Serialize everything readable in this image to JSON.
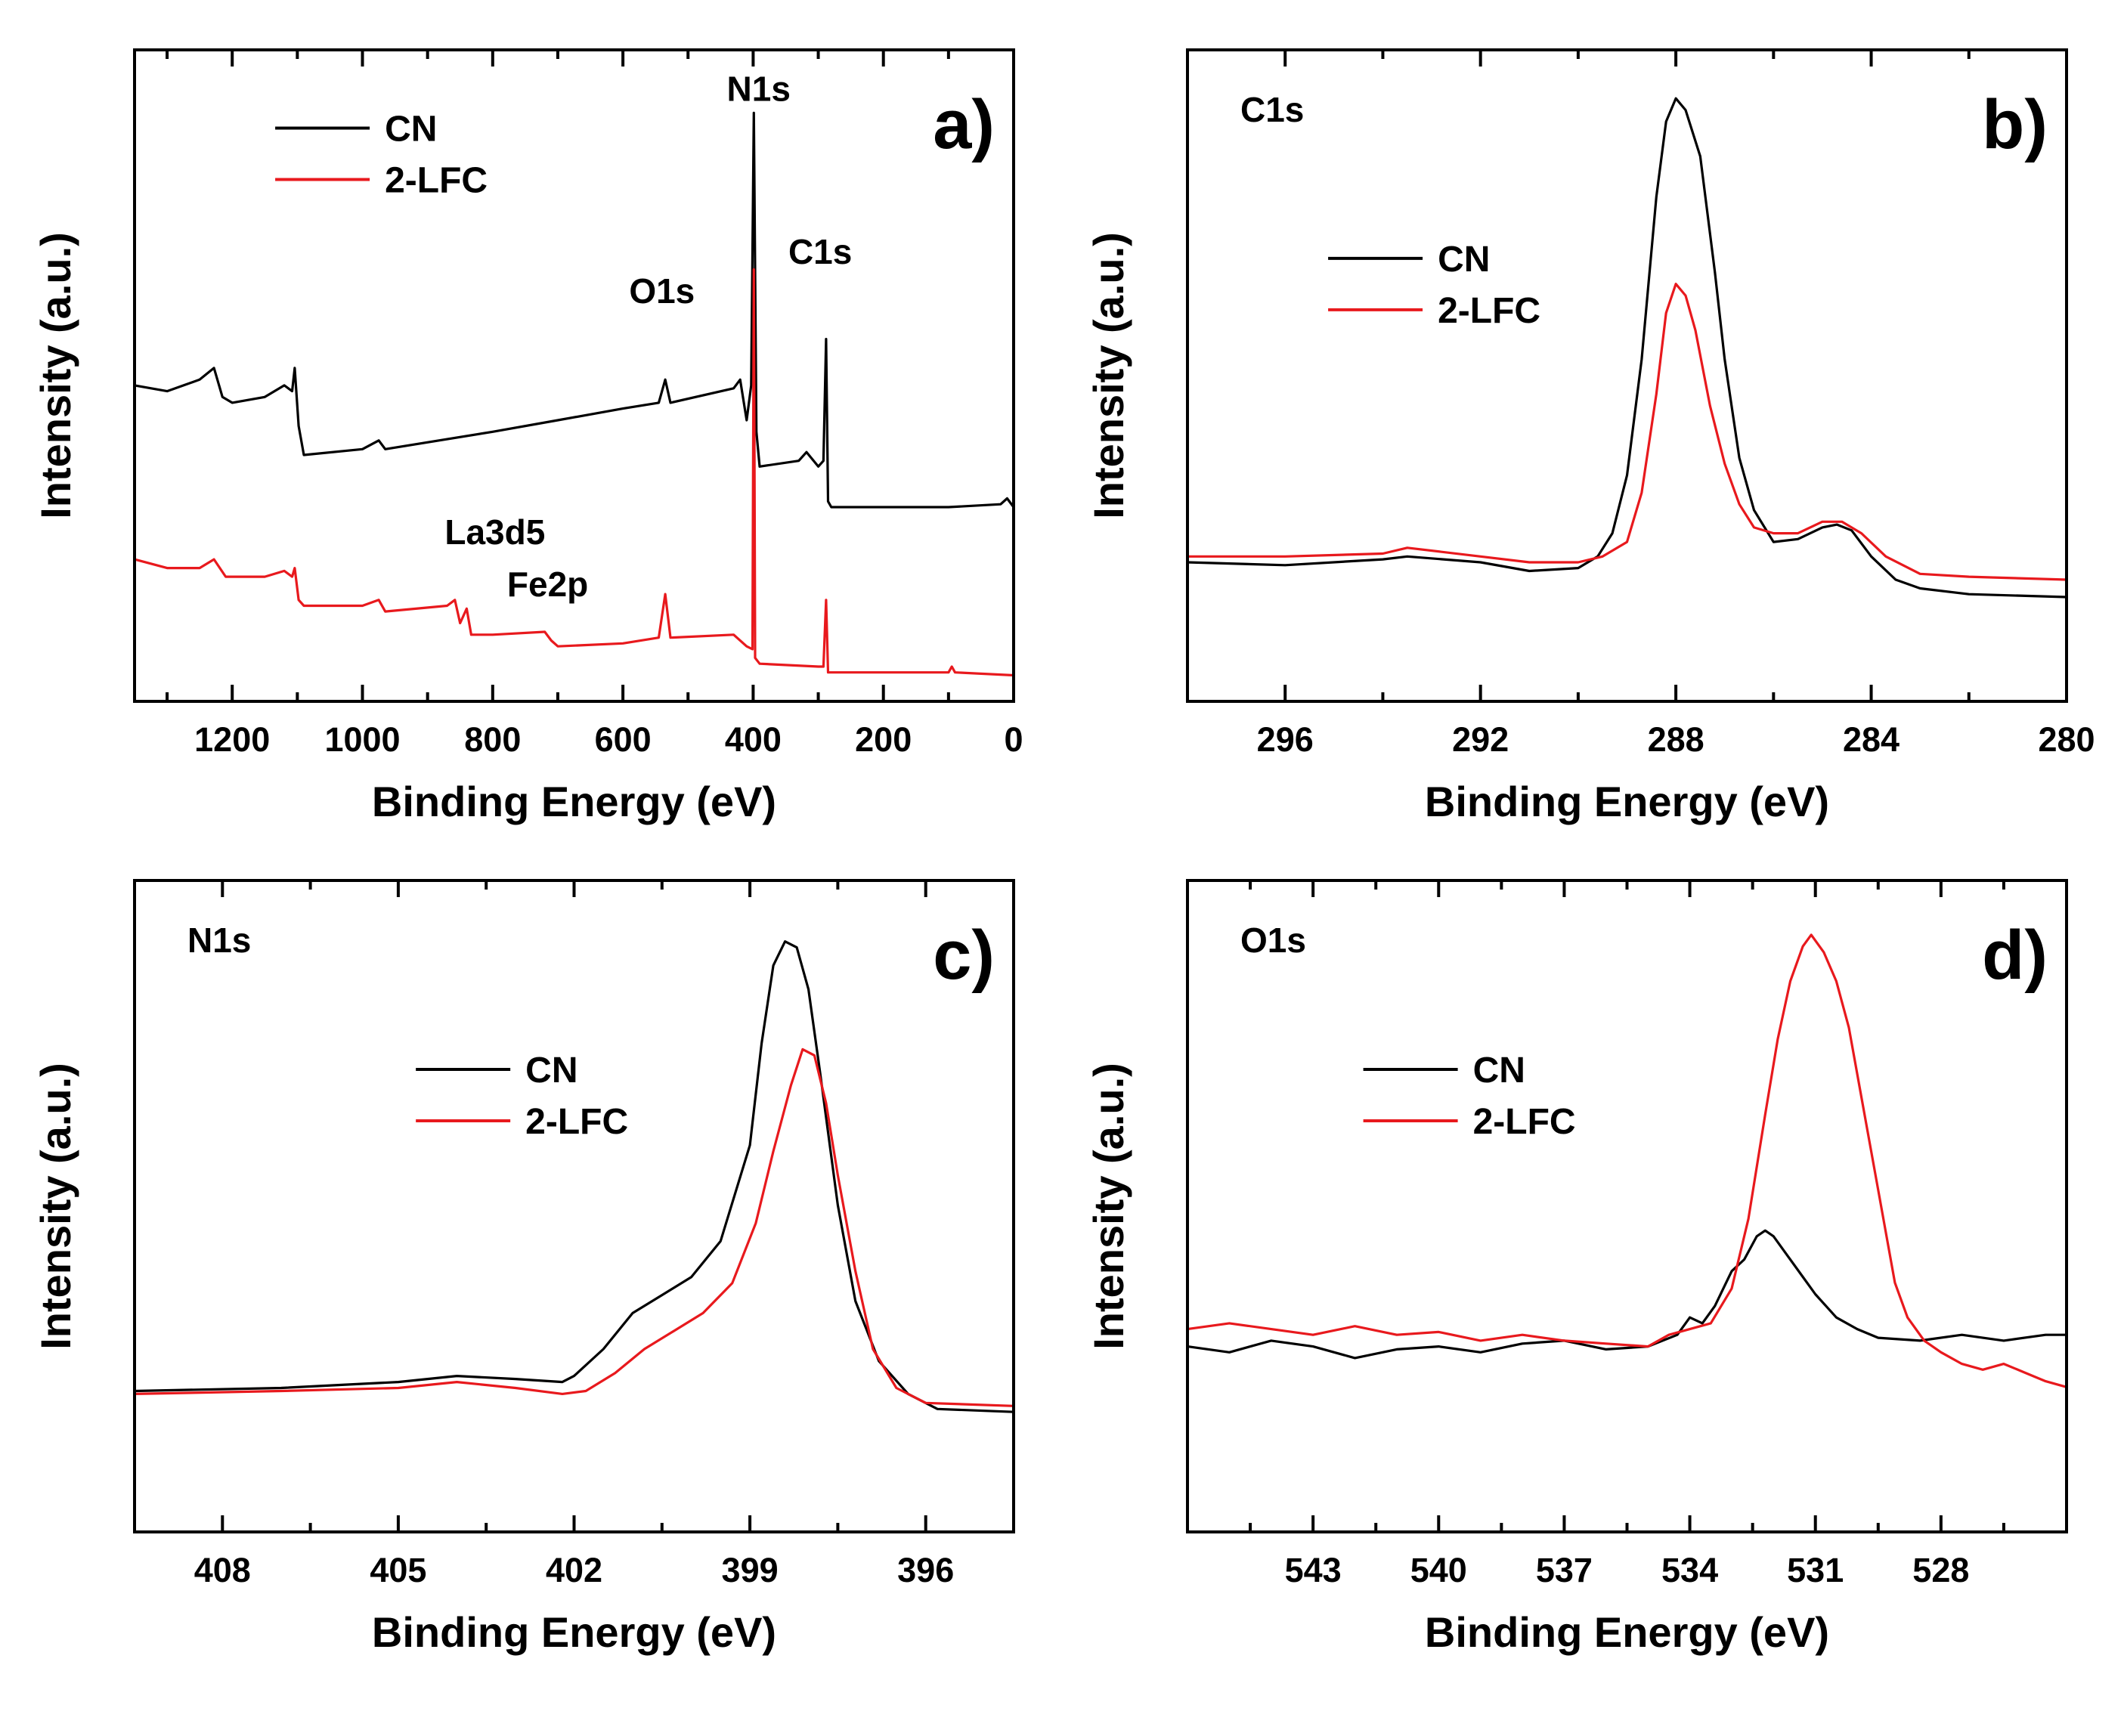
{
  "colors": {
    "CN": "#000000",
    "2-LFC": "#e8191d"
  },
  "chart_data": [
    {
      "id": "a",
      "type": "line",
      "panel_label": "a)",
      "xlabel": "Binding Energy (eV)",
      "ylabel": "Intensity (a.u.)",
      "xlim": [
        1350,
        0
      ],
      "ylim": [
        0,
        100
      ],
      "xticks": [
        1200,
        1000,
        800,
        600,
        400,
        200,
        0
      ],
      "legend": [
        "CN",
        "2-LFC"
      ],
      "annotations": [
        "N1s",
        "C1s",
        "O1s",
        "La3d5",
        "Fe2p"
      ],
      "series": [
        {
          "name": "CN",
          "points": [
            [
              1350,
              50
            ],
            [
              1300,
              49
            ],
            [
              1250,
              51
            ],
            [
              1228,
              53
            ],
            [
              1215,
              48
            ],
            [
              1200,
              47
            ],
            [
              1150,
              48
            ],
            [
              1120,
              50
            ],
            [
              1108,
              49
            ],
            [
              1104,
              53
            ],
            [
              1098,
              43
            ],
            [
              1090,
              38
            ],
            [
              1000,
              39
            ],
            [
              975,
              40.5
            ],
            [
              965,
              39
            ],
            [
              800,
              42
            ],
            [
              700,
              44
            ],
            [
              600,
              46
            ],
            [
              545,
              47
            ],
            [
              535,
              51
            ],
            [
              527,
              47
            ],
            [
              430,
              49.5
            ],
            [
              420,
              51
            ],
            [
              410,
              44
            ],
            [
              403,
              50
            ],
            [
              399,
              97
            ],
            [
              395,
              42
            ],
            [
              390,
              36
            ],
            [
              330,
              37
            ],
            [
              318,
              38.5
            ],
            [
              300,
              36
            ],
            [
              292,
              37
            ],
            [
              288,
              58
            ],
            [
              285,
              30
            ],
            [
              280,
              29
            ],
            [
              100,
              29
            ],
            [
              20,
              29.5
            ],
            [
              10,
              30.5
            ],
            [
              0,
              29
            ]
          ]
        },
        {
          "name": "2-LFC",
          "points": [
            [
              1350,
              20
            ],
            [
              1300,
              18.5
            ],
            [
              1250,
              18.5
            ],
            [
              1228,
              20
            ],
            [
              1210,
              17
            ],
            [
              1150,
              17
            ],
            [
              1120,
              18
            ],
            [
              1108,
              17
            ],
            [
              1104,
              18.5
            ],
            [
              1098,
              13
            ],
            [
              1090,
              12
            ],
            [
              1000,
              12
            ],
            [
              975,
              13
            ],
            [
              965,
              11
            ],
            [
              870,
              12
            ],
            [
              858,
              13
            ],
            [
              850,
              9
            ],
            [
              840,
              11.5
            ],
            [
              833,
              7
            ],
            [
              800,
              7
            ],
            [
              720,
              7.5
            ],
            [
              710,
              6
            ],
            [
              700,
              5
            ],
            [
              600,
              5.5
            ],
            [
              545,
              6.5
            ],
            [
              535,
              14
            ],
            [
              527,
              6.5
            ],
            [
              430,
              7
            ],
            [
              410,
              5
            ],
            [
              401,
              4.5
            ],
            [
              399,
              70
            ],
            [
              397,
              3
            ],
            [
              390,
              2
            ],
            [
              300,
              1.5
            ],
            [
              292,
              1.5
            ],
            [
              288,
              13
            ],
            [
              285,
              0.5
            ],
            [
              100,
              0.5
            ],
            [
              95,
              1.5
            ],
            [
              90,
              0.5
            ],
            [
              0,
              0
            ]
          ]
        }
      ]
    },
    {
      "id": "b",
      "type": "line",
      "panel_label": "b)",
      "corner_label": "C1s",
      "xlabel": "Binding Energy (eV)",
      "ylabel": "Intensity (a.u.)",
      "xlim": [
        298,
        280
      ],
      "ylim": [
        0,
        100
      ],
      "xticks": [
        296,
        292,
        288,
        284,
        280
      ],
      "legend": [
        "CN",
        "2-LFC"
      ],
      "series": [
        {
          "name": "CN",
          "points": [
            [
              298,
              15
            ],
            [
              296,
              14.5
            ],
            [
              294,
              15.5
            ],
            [
              293.5,
              16
            ],
            [
              292,
              15
            ],
            [
              291,
              13.5
            ],
            [
              290,
              14
            ],
            [
              289.6,
              16
            ],
            [
              289.3,
              20
            ],
            [
              289,
              30
            ],
            [
              288.7,
              50
            ],
            [
              288.4,
              78
            ],
            [
              288.2,
              91
            ],
            [
              288,
              95
            ],
            [
              287.8,
              93
            ],
            [
              287.5,
              85
            ],
            [
              287.2,
              65
            ],
            [
              287,
              50
            ],
            [
              286.7,
              33
            ],
            [
              286.4,
              24
            ],
            [
              286,
              18.5
            ],
            [
              285.5,
              19
            ],
            [
              285,
              21
            ],
            [
              284.7,
              21.5
            ],
            [
              284.4,
              20.5
            ],
            [
              284,
              16
            ],
            [
              283.5,
              12
            ],
            [
              283,
              10.5
            ],
            [
              282,
              9.5
            ],
            [
              280,
              9
            ]
          ]
        },
        {
          "name": "2-LFC",
          "points": [
            [
              298,
              16
            ],
            [
              296,
              16
            ],
            [
              294,
              16.5
            ],
            [
              293.5,
              17.5
            ],
            [
              292,
              16
            ],
            [
              291,
              15
            ],
            [
              290,
              15
            ],
            [
              289.5,
              16
            ],
            [
              289,
              18.5
            ],
            [
              288.7,
              27
            ],
            [
              288.4,
              44
            ],
            [
              288.2,
              58
            ],
            [
              288,
              63
            ],
            [
              287.8,
              61
            ],
            [
              287.6,
              55
            ],
            [
              287.3,
              42
            ],
            [
              287,
              32
            ],
            [
              286.7,
              25
            ],
            [
              286.4,
              21
            ],
            [
              286,
              20
            ],
            [
              285.5,
              20
            ],
            [
              285,
              22
            ],
            [
              284.6,
              22
            ],
            [
              284.2,
              20
            ],
            [
              283.7,
              16
            ],
            [
              283,
              13
            ],
            [
              282,
              12.5
            ],
            [
              280,
              12
            ]
          ]
        }
      ]
    },
    {
      "id": "c",
      "type": "line",
      "panel_label": "c)",
      "corner_label": "N1s",
      "xlabel": "Binding Energy (eV)",
      "ylabel": "Intensity (a.u.)",
      "xlim": [
        409.5,
        394.5
      ],
      "ylim": [
        0,
        100
      ],
      "xticks": [
        408,
        405,
        402,
        399,
        396
      ],
      "legend": [
        "CN",
        "2-LFC"
      ],
      "series": [
        {
          "name": "CN",
          "points": [
            [
              409.5,
              17
            ],
            [
              407,
              17.5
            ],
            [
              405,
              18.5
            ],
            [
              404,
              19.5
            ],
            [
              403,
              19
            ],
            [
              402.2,
              18.5
            ],
            [
              402,
              19.5
            ],
            [
              401.5,
              24
            ],
            [
              401,
              30
            ],
            [
              400.5,
              33
            ],
            [
              400,
              36
            ],
            [
              399.5,
              42
            ],
            [
              399,
              58
            ],
            [
              398.8,
              75
            ],
            [
              398.6,
              88
            ],
            [
              398.4,
              92
            ],
            [
              398.2,
              91
            ],
            [
              398,
              84
            ],
            [
              397.8,
              70
            ],
            [
              397.5,
              48
            ],
            [
              397.2,
              32
            ],
            [
              396.8,
              22
            ],
            [
              396.3,
              16.5
            ],
            [
              395.8,
              14
            ],
            [
              394.5,
              13.5
            ]
          ]
        },
        {
          "name": "2-LFC",
          "points": [
            [
              409.5,
              16.5
            ],
            [
              407,
              17
            ],
            [
              405,
              17.5
            ],
            [
              404,
              18.5
            ],
            [
              403,
              17.5
            ],
            [
              402.2,
              16.5
            ],
            [
              401.8,
              17
            ],
            [
              401.3,
              20
            ],
            [
              400.8,
              24
            ],
            [
              400.3,
              27
            ],
            [
              399.8,
              30
            ],
            [
              399.3,
              35
            ],
            [
              398.9,
              45
            ],
            [
              398.6,
              57
            ],
            [
              398.3,
              68
            ],
            [
              398.1,
              74
            ],
            [
              397.9,
              73
            ],
            [
              397.7,
              65
            ],
            [
              397.5,
              53
            ],
            [
              397.2,
              37
            ],
            [
              396.9,
              24
            ],
            [
              396.5,
              17.5
            ],
            [
              396,
              15
            ],
            [
              394.5,
              14.5
            ]
          ]
        }
      ]
    },
    {
      "id": "d",
      "type": "line",
      "panel_label": "d)",
      "corner_label": "O1s",
      "xlabel": "Binding Energy (eV)",
      "ylabel": "Intensity (a.u.)",
      "xlim": [
        546,
        525
      ],
      "ylim": [
        0,
        100
      ],
      "xticks": [
        543,
        540,
        537,
        534,
        531,
        528
      ],
      "legend": [
        "CN",
        "2-LFC"
      ],
      "series": [
        {
          "name": "CN",
          "points": [
            [
              546,
              23
            ],
            [
              545,
              22
            ],
            [
              544,
              24
            ],
            [
              543,
              23
            ],
            [
              542,
              21
            ],
            [
              541,
              22.5
            ],
            [
              540,
              23
            ],
            [
              539,
              22
            ],
            [
              538,
              23.5
            ],
            [
              537,
              24
            ],
            [
              536,
              22.5
            ],
            [
              535,
              23
            ],
            [
              534.3,
              25
            ],
            [
              534,
              28
            ],
            [
              533.7,
              27
            ],
            [
              533.4,
              30
            ],
            [
              533,
              36
            ],
            [
              532.7,
              38
            ],
            [
              532.4,
              42
            ],
            [
              532.2,
              43
            ],
            [
              532,
              42
            ],
            [
              531.7,
              39
            ],
            [
              531.3,
              35
            ],
            [
              531,
              32
            ],
            [
              530.5,
              28
            ],
            [
              530,
              26
            ],
            [
              529.5,
              24.5
            ],
            [
              528.5,
              24
            ],
            [
              527.5,
              25
            ],
            [
              526.5,
              24
            ],
            [
              525.5,
              25
            ],
            [
              525,
              25
            ]
          ]
        },
        {
          "name": "2-LFC",
          "points": [
            [
              546,
              26
            ],
            [
              545,
              27
            ],
            [
              544,
              26
            ],
            [
              543,
              25
            ],
            [
              542,
              26.5
            ],
            [
              541,
              25
            ],
            [
              540,
              25.5
            ],
            [
              539,
              24
            ],
            [
              538,
              25
            ],
            [
              537,
              24
            ],
            [
              536,
              23.5
            ],
            [
              535,
              23
            ],
            [
              534.5,
              25
            ],
            [
              534,
              26
            ],
            [
              533.5,
              27
            ],
            [
              533,
              33
            ],
            [
              532.6,
              45
            ],
            [
              532.2,
              63
            ],
            [
              531.9,
              76
            ],
            [
              531.6,
              86
            ],
            [
              531.3,
              92
            ],
            [
              531.1,
              94
            ],
            [
              530.8,
              91
            ],
            [
              530.5,
              86
            ],
            [
              530.2,
              78
            ],
            [
              529.9,
              66
            ],
            [
              529.5,
              50
            ],
            [
              529.1,
              34
            ],
            [
              528.8,
              28
            ],
            [
              528.4,
              24
            ],
            [
              528,
              22
            ],
            [
              527.5,
              20
            ],
            [
              527,
              19
            ],
            [
              526.5,
              20
            ],
            [
              526,
              18.5
            ],
            [
              525.5,
              17
            ],
            [
              525,
              16
            ]
          ]
        }
      ]
    }
  ]
}
